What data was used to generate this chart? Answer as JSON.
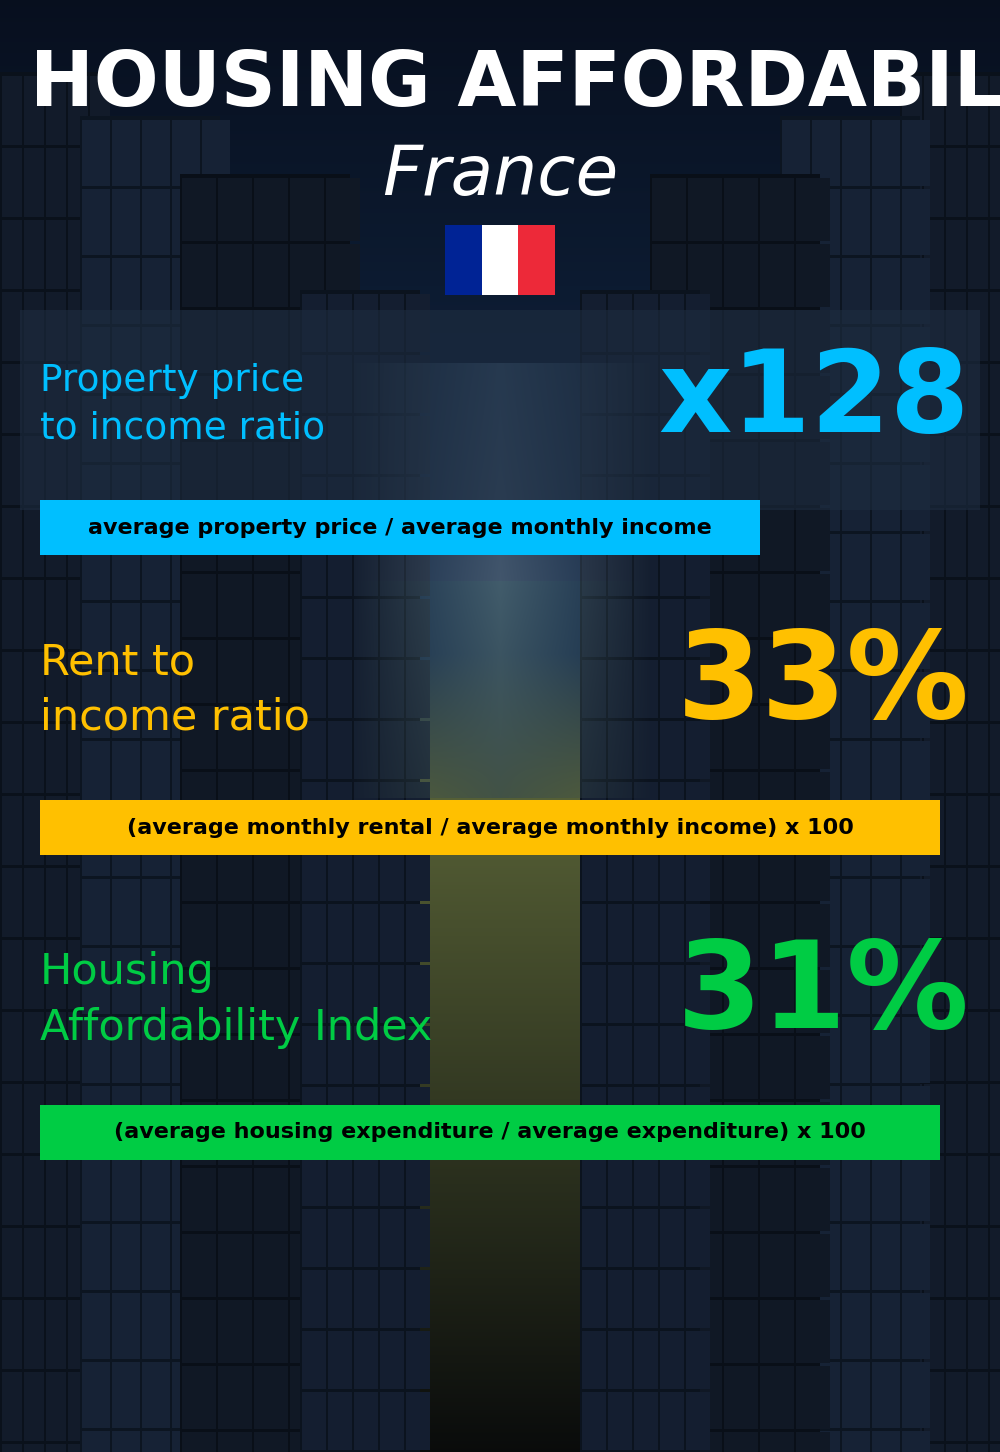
{
  "title_line1": "HOUSING AFFORDABILITY",
  "title_line2": "France",
  "background_color": "#0d1b2a",
  "title1_color": "#ffffff",
  "title2_color": "#ffffff",
  "flag_colors": [
    "#002395",
    "#ffffff",
    "#ED2939"
  ],
  "section1_label": "Property price\nto income ratio",
  "section1_value": "x128",
  "section1_label_color": "#00bfff",
  "section1_value_color": "#00bfff",
  "section1_banner_text": "average property price / average monthly income",
  "section1_banner_bg": "#00bfff",
  "section1_banner_text_color": "#000000",
  "section2_label": "Rent to\nincome ratio",
  "section2_value": "33%",
  "section2_label_color": "#ffc000",
  "section2_value_color": "#ffc000",
  "section2_banner_text": "(average monthly rental / average monthly income) x 100",
  "section2_banner_bg": "#ffc000",
  "section2_banner_text_color": "#000000",
  "section3_label": "Housing\nAffordability Index",
  "section3_value": "31%",
  "section3_label_color": "#00cc44",
  "section3_value_color": "#00cc44",
  "section3_banner_text": "(average housing expenditure / average expenditure) x 100",
  "section3_banner_bg": "#00cc44",
  "section3_banner_text_color": "#000000",
  "fig_width": 10.0,
  "fig_height": 14.52,
  "dpi": 100
}
